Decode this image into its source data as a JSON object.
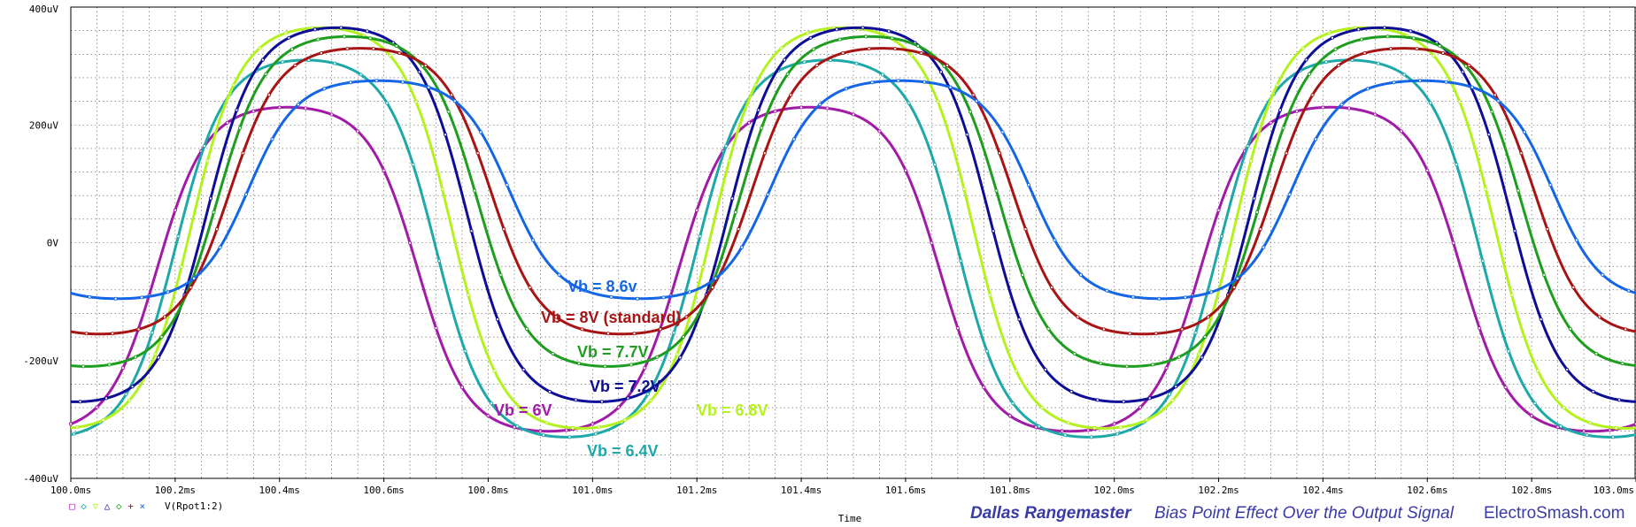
{
  "chart_data": {
    "type": "line",
    "xlabel": "Time",
    "xlim": [
      100.0,
      103.0
    ],
    "ylim": [
      -400,
      400
    ],
    "x_ticks": [
      "100.0ms",
      "100.2ms",
      "100.4ms",
      "100.6ms",
      "100.8ms",
      "101.0ms",
      "101.2ms",
      "101.4ms",
      "101.6ms",
      "101.8ms",
      "102.0ms",
      "102.2ms",
      "102.4ms",
      "102.6ms",
      "102.8ms",
      "103.0ms"
    ],
    "y_ticks": [
      "400uV",
      "200uV",
      "0V",
      "-200uV",
      "-400uV"
    ],
    "grid": true,
    "legend_text": "V(Rpot1:2)",
    "legend_position": "bottom-left",
    "series": [
      {
        "name": "Vb = 6V",
        "color": "#a21aa8",
        "max": 230,
        "min": -320,
        "phase": -0.115
      },
      {
        "name": "Vb = 6.4V",
        "color": "#1ea8a8",
        "max": 310,
        "min": -330,
        "phase": -0.08
      },
      {
        "name": "Vb = 6.8V",
        "color": "#b4f21e",
        "max": 365,
        "min": -315,
        "phase": -0.05
      },
      {
        "name": "Vb = 7.2V",
        "color": "#0d0d98",
        "max": 365,
        "min": -270,
        "phase": -0.02
      },
      {
        "name": "Vb = 7.7V",
        "color": "#1e9e1e",
        "max": 350,
        "min": -210,
        "phase": 0.0
      },
      {
        "name": "Vb = 8V (standard)",
        "color": "#a81414",
        "max": 330,
        "min": -155,
        "phase": 0.025
      },
      {
        "name": "Vb = 8.6v",
        "color": "#1466e6",
        "max": 275,
        "min": -95,
        "phase": 0.06
      }
    ],
    "period_ms": 1.0,
    "peak_time_ms": 100.53
  },
  "footer": {
    "title": "Dallas Rangemaster",
    "subtitle": "Bias Point Effect Over the Output Signal",
    "site": "ElectroSmash.com"
  }
}
